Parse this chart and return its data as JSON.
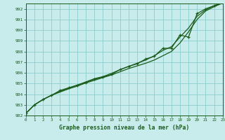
{
  "title": "Graphe pression niveau de la mer (hPa)",
  "bg_color": "#c8ecec",
  "grid_color": "#8ecece",
  "line_color": "#1a5c1a",
  "xlim": [
    0,
    23
  ],
  "ylim": [
    982,
    992.5
  ],
  "x": [
    0,
    1,
    2,
    3,
    4,
    5,
    6,
    7,
    8,
    9,
    10,
    11,
    12,
    13,
    14,
    15,
    16,
    17,
    18,
    19,
    20,
    21,
    22,
    23
  ],
  "yticks": [
    982,
    983,
    984,
    985,
    986,
    987,
    988,
    989,
    990,
    991,
    992
  ],
  "line_smooth1": [
    982.2,
    983.0,
    983.5,
    983.9,
    984.2,
    984.5,
    984.75,
    985.05,
    985.3,
    985.55,
    985.8,
    986.1,
    986.4,
    986.65,
    986.9,
    987.2,
    987.6,
    988.0,
    988.8,
    989.85,
    991.0,
    991.8,
    992.2,
    992.55
  ],
  "line_smooth2": [
    982.2,
    983.0,
    983.5,
    983.9,
    984.25,
    984.55,
    984.85,
    985.15,
    985.45,
    985.65,
    985.95,
    986.3,
    986.6,
    986.9,
    987.2,
    987.6,
    988.1,
    988.45,
    989.35,
    990.2,
    991.3,
    991.9,
    992.3,
    992.55
  ],
  "line_markers": [
    982.2,
    983.0,
    983.5,
    983.9,
    984.35,
    984.6,
    984.85,
    985.1,
    985.4,
    985.6,
    985.85,
    986.3,
    986.6,
    986.85,
    987.3,
    987.55,
    988.3,
    988.3,
    989.55,
    989.35,
    991.55,
    992.0,
    992.3,
    992.55
  ]
}
